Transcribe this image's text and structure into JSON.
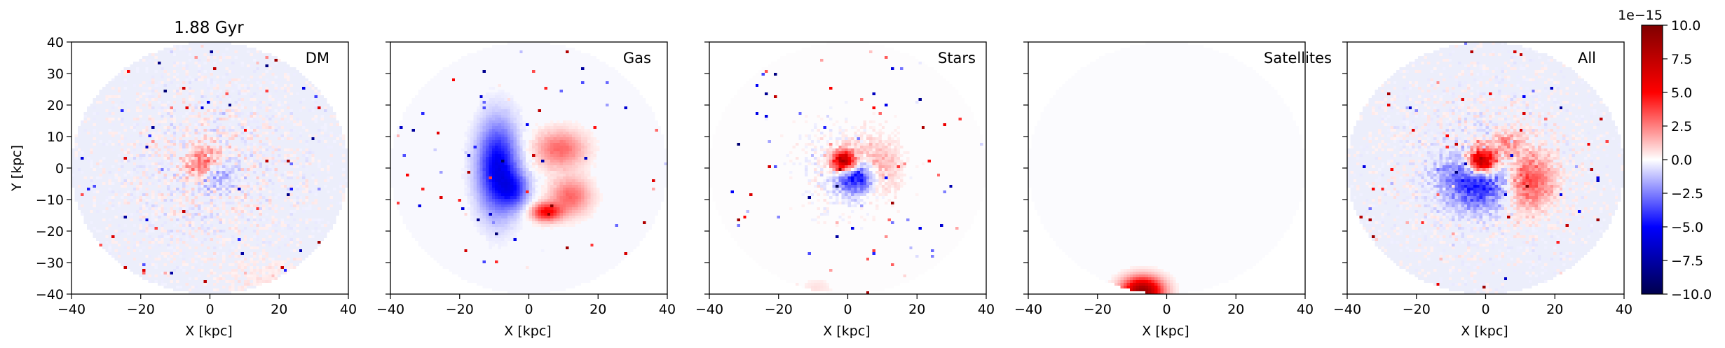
{
  "figure": {
    "colorbar": {
      "ticks": [
        "−10.0",
        "−7.5",
        "−5.0",
        "−2.5",
        "0.0",
        "2.5",
        "5.0",
        "7.5",
        "10.0"
      ],
      "offset_label": "1e−15",
      "colormap": "seismic",
      "range": [
        -10.0,
        10.0
      ]
    }
  },
  "chart_data": [
    {
      "type": "heatmap",
      "title": "1.88 Gyr",
      "label": "DM",
      "xlabel": "X [kpc]",
      "ylabel": "Y [kpc]",
      "xlim": [
        -40,
        40
      ],
      "ylim": [
        -40,
        40
      ],
      "xticks": [
        "−40",
        "−20",
        "0",
        "20",
        "40"
      ],
      "yticks": [
        "40",
        "30",
        "20",
        "10",
        "0",
        "−10",
        "−20",
        "−30",
        "−40"
      ],
      "disk_radius_kpc": 40,
      "background_color": "#eceefb",
      "blobs": [
        {
          "x": -1,
          "y": 1,
          "sx": 3.5,
          "sy": 3.5,
          "v": 5.0
        },
        {
          "x": 1,
          "y": -1,
          "sx": 3.5,
          "sy": 3.5,
          "v": -4.0
        },
        {
          "x": 14,
          "y": -34,
          "sx": 10,
          "sy": 4,
          "v": 0.4
        }
      ],
      "noise": 1.6,
      "noise_falloff_kpc": 25
    },
    {
      "type": "heatmap",
      "title": "",
      "label": "Gas",
      "xlabel": "X [kpc]",
      "ylabel": "",
      "xlim": [
        -40,
        40
      ],
      "ylim": [
        -40,
        40
      ],
      "xticks": [
        "−40",
        "−20",
        "0",
        "20",
        "40"
      ],
      "yticks": [],
      "disk_radius_kpc": 40,
      "background_color": "#f8f8fe",
      "blobs": [
        {
          "x": -9,
          "y": 0,
          "sx": 4,
          "sy": 10,
          "v": -5.5
        },
        {
          "x": -4,
          "y": -7,
          "sx": 3,
          "sy": 4,
          "v": -3.0
        },
        {
          "x": 9,
          "y": 6,
          "sx": 5,
          "sy": 4,
          "v": 3.0
        },
        {
          "x": 12,
          "y": -9,
          "sx": 4,
          "sy": 4,
          "v": 3.0
        },
        {
          "x": 5,
          "y": -14,
          "sx": 3,
          "sy": 2,
          "v": 5.0
        }
      ],
      "noise": 0.3,
      "noise_falloff_kpc": 20
    },
    {
      "type": "heatmap",
      "title": "",
      "label": "Stars",
      "xlabel": "X [kpc]",
      "ylabel": "",
      "xlim": [
        -40,
        40
      ],
      "ylim": [
        -40,
        40
      ],
      "xticks": [
        "−40",
        "−20",
        "0",
        "20",
        "40"
      ],
      "yticks": [],
      "disk_radius_kpc": 40,
      "background_color": "#fdfcfd",
      "blobs": [
        {
          "x": -1,
          "y": 2,
          "sx": 2.5,
          "sy": 2.5,
          "v": 9.0
        },
        {
          "x": 2,
          "y": -3,
          "sx": 3.5,
          "sy": 3.5,
          "v": -5.5
        },
        {
          "x": 9,
          "y": 1,
          "sx": 4,
          "sy": 6,
          "v": 1.5
        },
        {
          "x": -9,
          "y": -38,
          "sx": 3,
          "sy": 2,
          "v": 0.6
        }
      ],
      "noise": 1.8,
      "noise_falloff_kpc": 10
    },
    {
      "type": "heatmap",
      "title": "",
      "label": "Satellites",
      "xlabel": "X [kpc]",
      "ylabel": "",
      "xlim": [
        -40,
        40
      ],
      "ylim": [
        -40,
        40
      ],
      "xticks": [
        "−40",
        "−20",
        "0",
        "20",
        "40"
      ],
      "yticks": [],
      "disk_radius_kpc": 40,
      "background_color": "#fbfbfe",
      "blobs": [
        {
          "x": -7,
          "y": -39,
          "sx": 4,
          "sy": 3,
          "v": 9.0
        }
      ],
      "noise": 0,
      "noise_falloff_kpc": 10
    },
    {
      "type": "heatmap",
      "title": "",
      "label": "All",
      "xlabel": "X [kpc]",
      "ylabel": "",
      "xlim": [
        -40,
        40
      ],
      "ylim": [
        -40,
        40
      ],
      "xticks": [
        "−40",
        "−20",
        "0",
        "20",
        "40"
      ],
      "yticks": [],
      "disk_radius_kpc": 40,
      "background_color": "#eceefb",
      "blobs": [
        {
          "x": -1,
          "y": 2,
          "sx": 3,
          "sy": 3,
          "v": 10.0
        },
        {
          "x": -2,
          "y": -4,
          "sx": 7,
          "sy": 6,
          "v": -5.0
        },
        {
          "x": 12,
          "y": -4,
          "sx": 5,
          "sy": 6,
          "v": 4.0
        },
        {
          "x": 6,
          "y": 8,
          "sx": 3,
          "sy": 3,
          "v": 2.0
        }
      ],
      "noise": 1.6,
      "noise_falloff_kpc": 25
    }
  ]
}
